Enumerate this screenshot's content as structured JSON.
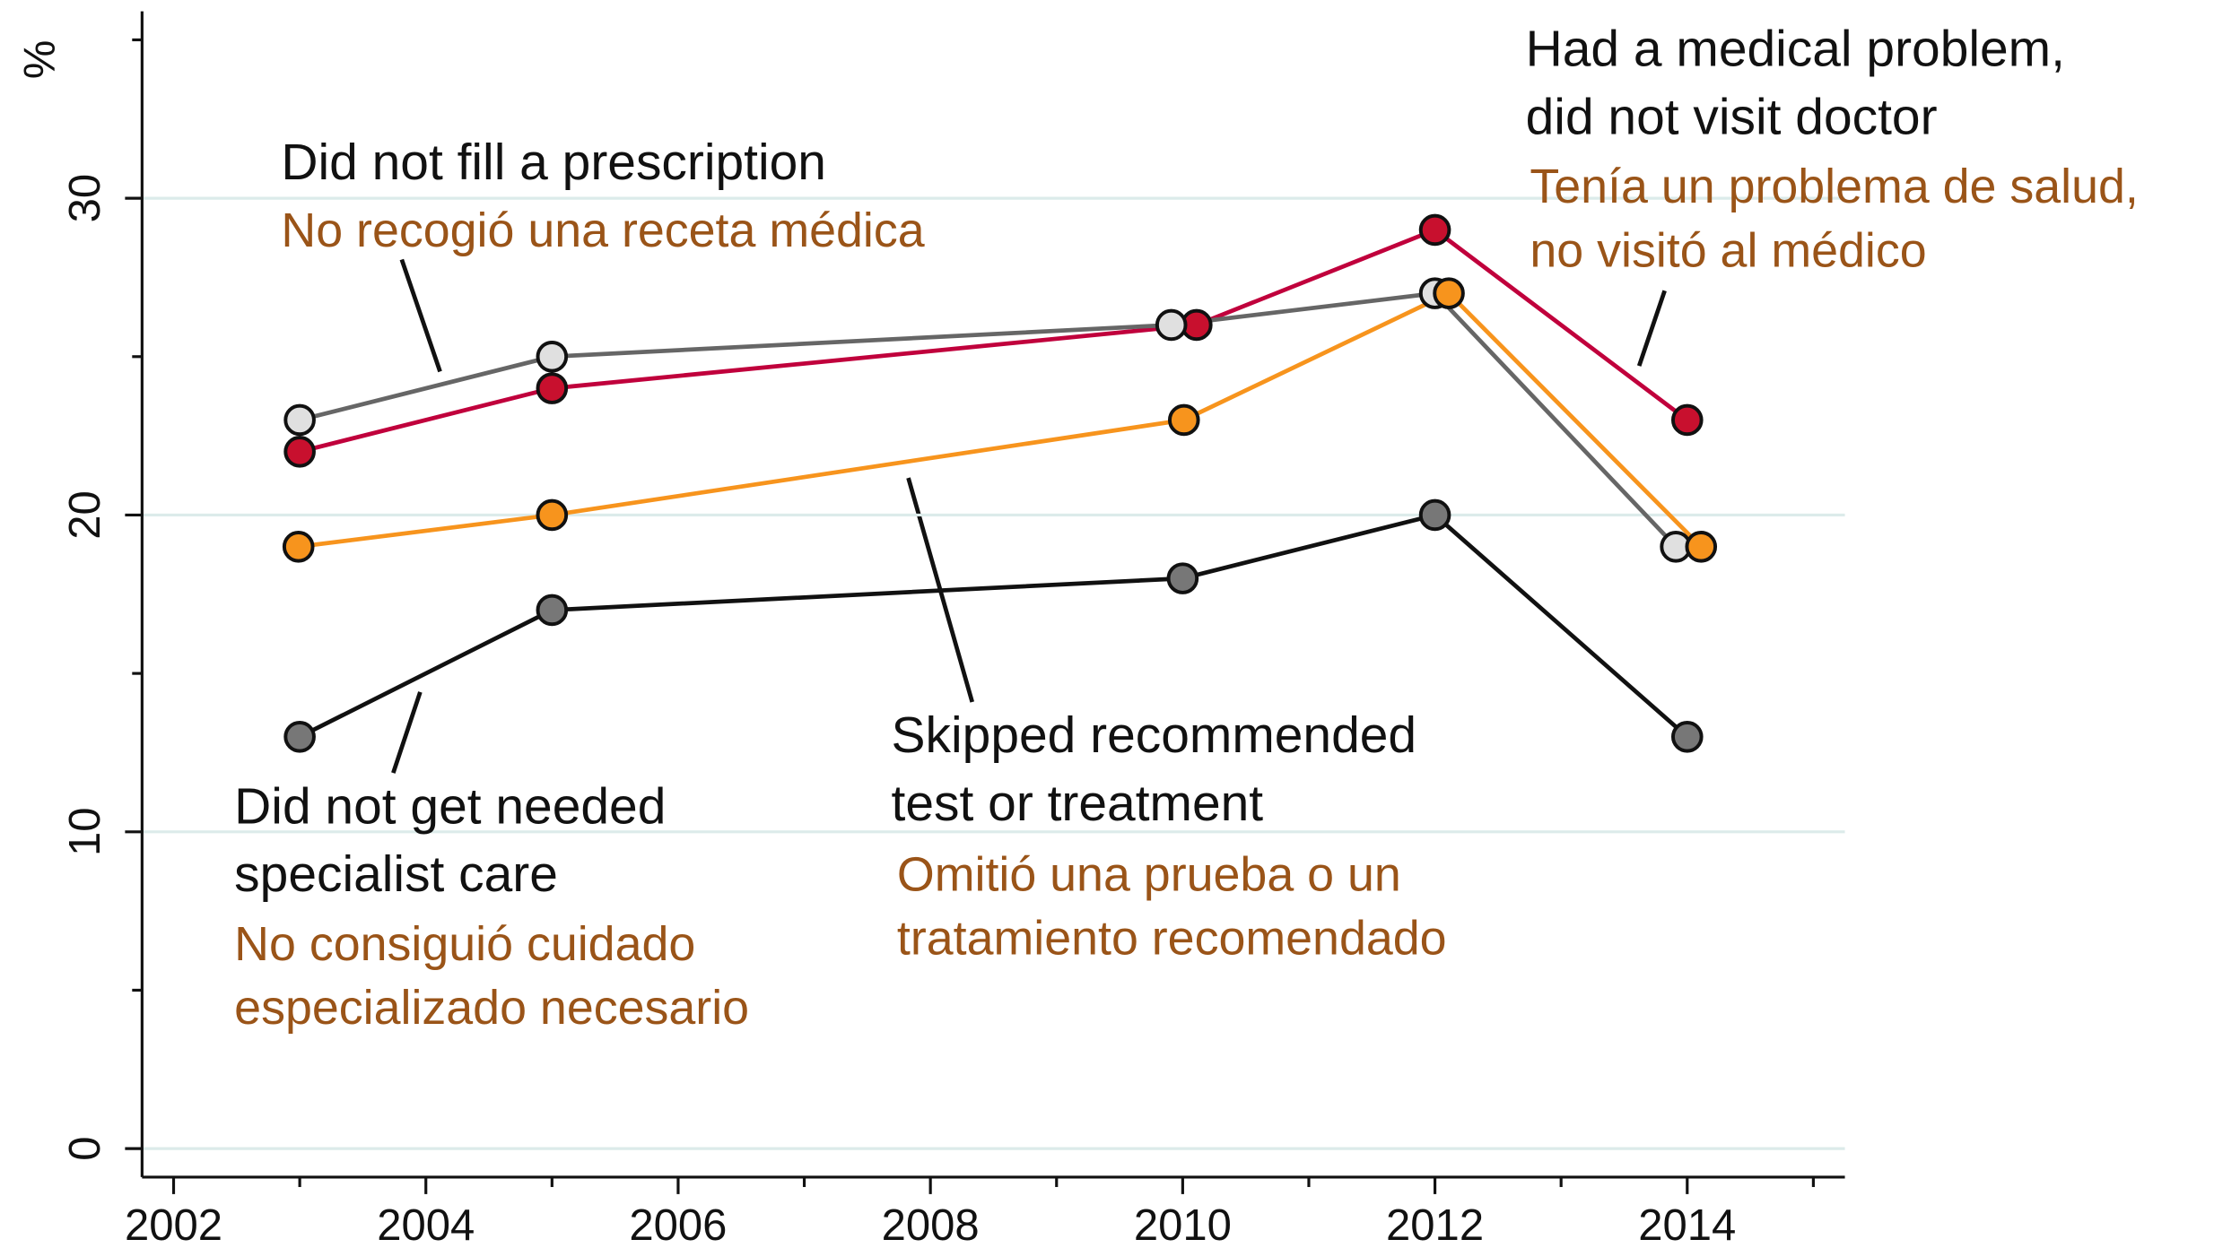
{
  "chart_data": {
    "type": "line",
    "y_label": "%",
    "xlim": [
      2001.75,
      2015.25
    ],
    "ylim": [
      -0.9,
      35.9
    ],
    "xticks": [
      2002,
      2004,
      2006,
      2008,
      2010,
      2012,
      2014
    ],
    "xticks_minor": [
      2003,
      2005,
      2007,
      2009,
      2011,
      2013,
      2015
    ],
    "yticks": [
      0,
      10,
      20,
      30
    ],
    "yticks_minor": [
      5,
      15,
      25,
      35
    ],
    "grid": true,
    "series": [
      {
        "color": "#c0003c",
        "marker_color": "#c8102e",
        "x": [
          2003,
          2005,
          2010.11,
          2012,
          2014
        ],
        "values": [
          22,
          24,
          26,
          29,
          23
        ]
      },
      {
        "color": "#666666",
        "marker_color": "#e0e0e0",
        "x": [
          2003,
          2005,
          2009.91,
          2012,
          2013.91
        ],
        "values": [
          23,
          25,
          26,
          27,
          19
        ]
      },
      {
        "color": "#f7941d",
        "marker_color": "#f7941d",
        "x": [
          2002.99,
          2005,
          2010.01,
          2012.11,
          2014.11
        ],
        "values": [
          19,
          20,
          23,
          27,
          19
        ]
      },
      {
        "color": "#111111",
        "marker_color": "#777777",
        "x": [
          2003,
          2005,
          2010,
          2012,
          2014
        ],
        "values": [
          13,
          17,
          18,
          20,
          13
        ]
      }
    ],
    "annotations": [
      {
        "lines": [
          "Did not fill a prescription"
        ],
        "lines_es": [
          "No recogió una receta médica"
        ]
      },
      {
        "lines": [
          "Had a medical problem,",
          "did not visit doctor"
        ],
        "lines_es": [
          "Tenía un problema de salud,",
          "no visitó al médico"
        ]
      },
      {
        "lines": [
          "Skipped recommended",
          "test or treatment"
        ],
        "lines_es": [
          "Omitió una prueba o un",
          "tratamiento recomendado"
        ]
      },
      {
        "lines": [
          "Did not get needed",
          "specialist care"
        ],
        "lines_es": [
          "No consiguió cuidado",
          "especializado necesario"
        ]
      }
    ]
  }
}
